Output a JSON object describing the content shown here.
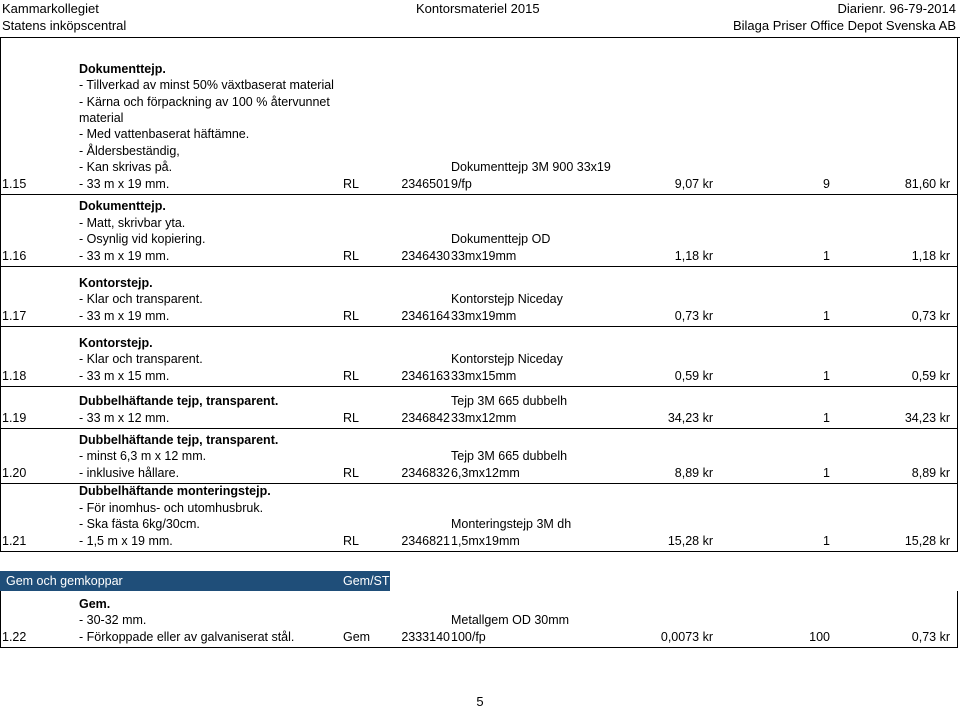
{
  "header": {
    "left_line1": "Kammarkollegiet",
    "left_line2": "Statens inköpscentral",
    "center": "Kontorsmateriel 2015",
    "right_line1": "Diarienr. 96-79-2014",
    "right_line2": "Bilaga Priser Office Depot Svenska AB"
  },
  "items": [
    {
      "num": "1.15",
      "desc": [
        "Dokumenttejp.",
        "- Tillverkad av minst 50% växtbaserat material",
        "- Kärna och förpackning av 100 % återvunnet",
        "material",
        "- Med vattenbaserat häftämne.",
        "- Åldersbeständig,",
        "- Kan skrivas på.",
        "- 33 m x 19 mm."
      ],
      "unit": "RL",
      "article": "2346501",
      "product": [
        "Dokumenttejp 3M 900 33x19",
        "9/fp"
      ],
      "price": "9,07 kr",
      "qty": "9",
      "total": "81,60 kr"
    },
    {
      "num": "1.16",
      "desc": [
        "Dokumenttejp.",
        "- Matt, skrivbar yta.",
        "- Osynlig vid kopiering.",
        "- 33 m x 19 mm."
      ],
      "unit": "RL",
      "article": "2346430",
      "product": [
        "Dokumenttejp OD",
        "33mx19mm"
      ],
      "price": "1,18 kr",
      "qty": "1",
      "total": "1,18 kr"
    },
    {
      "num": "1.17",
      "desc": [
        "Kontorstejp.",
        "- Klar och  transparent.",
        "-  33 m x 19 mm."
      ],
      "unit": "RL",
      "article": "2346164",
      "product": [
        "Kontorstejp Niceday",
        "33mx19mm"
      ],
      "price": "0,73 kr",
      "qty": "1",
      "total": "0,73 kr"
    },
    {
      "num": "1.18",
      "desc": [
        "Kontorstejp.",
        "- Klar och  transparent.",
        "- 33 m x 15 mm."
      ],
      "unit": "RL",
      "article": "2346163",
      "product": [
        "Kontorstejp Niceday",
        "33mx15mm"
      ],
      "price": "0,59 kr",
      "qty": "1",
      "total": "0,59 kr"
    },
    {
      "num": "1.19",
      "desc": [
        "Dubbelhäftande tejp, transparent.",
        "- 33 m x 12 mm."
      ],
      "unit": "RL",
      "article": "2346842",
      "product": [
        "Tejp 3M 665 dubbelh",
        "33mx12mm"
      ],
      "price": "34,23 kr",
      "qty": "1",
      "total": "34,23 kr"
    },
    {
      "num": "1.20",
      "desc": [
        "Dubbelhäftande tejp, transparent.",
        "- minst 6,3 m x 12 mm.",
        "- inklusive hållare."
      ],
      "unit": "RL",
      "article": "2346832",
      "product": [
        "Tejp 3M 665 dubbelh",
        "6,3mx12mm"
      ],
      "price": "8,89 kr",
      "qty": "1",
      "total": "8,89 kr"
    },
    {
      "num": "1.21",
      "desc": [
        "Dubbelhäftande monteringstejp.",
        "- För inomhus- och utomhusbruk.",
        "- Ska fästa 6kg/30cm.",
        "- 1,5 m x 19 mm."
      ],
      "unit": "RL",
      "article": "2346821",
      "product": [
        "Monteringstejp 3M dh",
        "1,5mx19mm"
      ],
      "price": "15,28 kr",
      "qty": "1",
      "total": "15,28 kr"
    },
    {
      "num": "1.22",
      "desc": [
        "Gem.",
        "- 30-32 mm.",
        "- Förkoppade eller av galvaniserat stål."
      ],
      "unit": "Gem",
      "article": "2333140",
      "product": [
        "Metallgem OD 30mm",
        "100/fp"
      ],
      "price": "0,0073 kr",
      "qty": "100",
      "total": "0,73 kr"
    }
  ],
  "section": {
    "title": "Gem och gemkoppar",
    "unit_label": "Gem/ST"
  },
  "colors": {
    "section_bg": "#1f4e79",
    "section_text": "#ffffff"
  },
  "page_number": "5"
}
